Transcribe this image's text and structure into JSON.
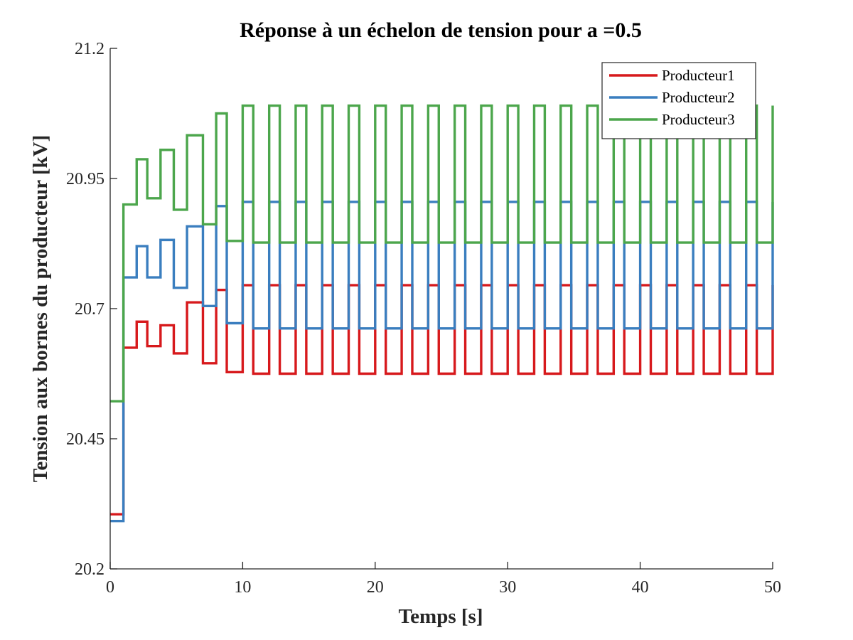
{
  "chart_data": {
    "type": "line",
    "title": "Réponse à un échelon de tension pour a =0.5",
    "xlabel": "Temps [s]",
    "ylabel": "Tension aux bornes du producteur [kV]",
    "xlim": [
      0,
      50
    ],
    "ylim": [
      20.2,
      21.2
    ],
    "x_ticks": [
      0,
      10,
      20,
      30,
      40,
      50
    ],
    "y_ticks": [
      20.2,
      20.45,
      20.7,
      20.95,
      21.2
    ],
    "x_tick_labels": [
      "0",
      "10",
      "20",
      "30",
      "40",
      "50"
    ],
    "y_tick_labels": [
      "20.2",
      "20.45",
      "20.7",
      "20.95",
      "21.2"
    ],
    "grid": false,
    "legend_position": "top-right",
    "series": [
      {
        "name": "Producteur1",
        "color": "#d7191c",
        "points": [
          [
            0,
            20.305
          ],
          [
            1,
            20.305
          ],
          [
            1,
            20.625
          ],
          [
            2,
            20.625
          ],
          [
            2,
            20.675
          ],
          [
            2.8,
            20.675
          ],
          [
            2.8,
            20.628
          ],
          [
            3.8,
            20.628
          ],
          [
            3.8,
            20.668
          ],
          [
            4.8,
            20.668
          ],
          [
            4.8,
            20.614
          ],
          [
            5.8,
            20.614
          ],
          [
            5.8,
            20.712
          ],
          [
            7,
            20.712
          ],
          [
            7,
            20.595
          ],
          [
            8,
            20.595
          ],
          [
            8,
            20.736
          ],
          [
            8.8,
            20.736
          ],
          [
            8.8,
            20.578
          ],
          [
            10,
            20.578
          ],
          [
            10,
            20.745
          ],
          [
            10.8,
            20.745
          ],
          [
            10.8,
            20.575
          ],
          [
            12,
            20.575
          ],
          [
            12,
            20.745
          ],
          [
            12.8,
            20.745
          ],
          [
            12.8,
            20.575
          ],
          [
            14,
            20.575
          ],
          [
            14,
            20.745
          ],
          [
            14.8,
            20.745
          ],
          [
            14.8,
            20.575
          ],
          [
            16,
            20.575
          ],
          [
            16,
            20.745
          ],
          [
            16.8,
            20.745
          ],
          [
            16.8,
            20.575
          ],
          [
            18,
            20.575
          ],
          [
            18,
            20.745
          ],
          [
            18.8,
            20.745
          ],
          [
            18.8,
            20.575
          ],
          [
            20,
            20.575
          ],
          [
            20,
            20.745
          ],
          [
            20.8,
            20.745
          ],
          [
            20.8,
            20.575
          ],
          [
            22,
            20.575
          ],
          [
            22,
            20.745
          ],
          [
            22.8,
            20.745
          ],
          [
            22.8,
            20.575
          ],
          [
            24,
            20.575
          ],
          [
            24,
            20.745
          ],
          [
            24.8,
            20.745
          ],
          [
            24.8,
            20.575
          ],
          [
            26,
            20.575
          ],
          [
            26,
            20.745
          ],
          [
            26.8,
            20.745
          ],
          [
            26.8,
            20.575
          ],
          [
            28,
            20.575
          ],
          [
            28,
            20.745
          ],
          [
            28.8,
            20.745
          ],
          [
            28.8,
            20.575
          ],
          [
            30,
            20.575
          ],
          [
            30,
            20.745
          ],
          [
            30.8,
            20.745
          ],
          [
            30.8,
            20.575
          ],
          [
            32,
            20.575
          ],
          [
            32,
            20.745
          ],
          [
            32.8,
            20.745
          ],
          [
            32.8,
            20.575
          ],
          [
            34,
            20.575
          ],
          [
            34,
            20.745
          ],
          [
            34.8,
            20.745
          ],
          [
            34.8,
            20.575
          ],
          [
            36,
            20.575
          ],
          [
            36,
            20.745
          ],
          [
            36.8,
            20.745
          ],
          [
            36.8,
            20.575
          ],
          [
            38,
            20.575
          ],
          [
            38,
            20.745
          ],
          [
            38.8,
            20.745
          ],
          [
            38.8,
            20.575
          ],
          [
            40,
            20.575
          ],
          [
            40,
            20.745
          ],
          [
            40.8,
            20.745
          ],
          [
            40.8,
            20.575
          ],
          [
            42,
            20.575
          ],
          [
            42,
            20.745
          ],
          [
            42.8,
            20.745
          ],
          [
            42.8,
            20.575
          ],
          [
            44,
            20.575
          ],
          [
            44,
            20.745
          ],
          [
            44.8,
            20.745
          ],
          [
            44.8,
            20.575
          ],
          [
            46,
            20.575
          ],
          [
            46,
            20.745
          ],
          [
            46.8,
            20.745
          ],
          [
            46.8,
            20.575
          ],
          [
            48,
            20.575
          ],
          [
            48,
            20.745
          ],
          [
            48.8,
            20.745
          ],
          [
            48.8,
            20.575
          ],
          [
            50,
            20.575
          ],
          [
            50,
            20.745
          ]
        ]
      },
      {
        "name": "Producteur2",
        "color": "#3a7ebf",
        "points": [
          [
            0,
            20.292
          ],
          [
            1,
            20.292
          ],
          [
            1,
            20.76
          ],
          [
            2,
            20.76
          ],
          [
            2,
            20.82
          ],
          [
            2.8,
            20.82
          ],
          [
            2.8,
            20.76
          ],
          [
            3.8,
            20.76
          ],
          [
            3.8,
            20.832
          ],
          [
            4.8,
            20.832
          ],
          [
            4.8,
            20.74
          ],
          [
            5.8,
            20.74
          ],
          [
            5.8,
            20.858
          ],
          [
            7,
            20.858
          ],
          [
            7,
            20.705
          ],
          [
            8,
            20.705
          ],
          [
            8,
            20.897
          ],
          [
            8.8,
            20.897
          ],
          [
            8.8,
            20.672
          ],
          [
            10,
            20.672
          ],
          [
            10,
            20.905
          ],
          [
            10.8,
            20.905
          ],
          [
            10.8,
            20.662
          ],
          [
            12,
            20.662
          ],
          [
            12,
            20.905
          ],
          [
            12.8,
            20.905
          ],
          [
            12.8,
            20.662
          ],
          [
            14,
            20.662
          ],
          [
            14,
            20.905
          ],
          [
            14.8,
            20.905
          ],
          [
            14.8,
            20.662
          ],
          [
            16,
            20.662
          ],
          [
            16,
            20.905
          ],
          [
            16.8,
            20.905
          ],
          [
            16.8,
            20.662
          ],
          [
            18,
            20.662
          ],
          [
            18,
            20.905
          ],
          [
            18.8,
            20.905
          ],
          [
            18.8,
            20.662
          ],
          [
            20,
            20.662
          ],
          [
            20,
            20.905
          ],
          [
            20.8,
            20.905
          ],
          [
            20.8,
            20.662
          ],
          [
            22,
            20.662
          ],
          [
            22,
            20.905
          ],
          [
            22.8,
            20.905
          ],
          [
            22.8,
            20.662
          ],
          [
            24,
            20.662
          ],
          [
            24,
            20.905
          ],
          [
            24.8,
            20.905
          ],
          [
            24.8,
            20.662
          ],
          [
            26,
            20.662
          ],
          [
            26,
            20.905
          ],
          [
            26.8,
            20.905
          ],
          [
            26.8,
            20.662
          ],
          [
            28,
            20.662
          ],
          [
            28,
            20.905
          ],
          [
            28.8,
            20.905
          ],
          [
            28.8,
            20.662
          ],
          [
            30,
            20.662
          ],
          [
            30,
            20.905
          ],
          [
            30.8,
            20.905
          ],
          [
            30.8,
            20.662
          ],
          [
            32,
            20.662
          ],
          [
            32,
            20.905
          ],
          [
            32.8,
            20.905
          ],
          [
            32.8,
            20.662
          ],
          [
            34,
            20.662
          ],
          [
            34,
            20.905
          ],
          [
            34.8,
            20.905
          ],
          [
            34.8,
            20.662
          ],
          [
            36,
            20.662
          ],
          [
            36,
            20.905
          ],
          [
            36.8,
            20.905
          ],
          [
            36.8,
            20.662
          ],
          [
            38,
            20.662
          ],
          [
            38,
            20.905
          ],
          [
            38.8,
            20.905
          ],
          [
            38.8,
            20.662
          ],
          [
            40,
            20.662
          ],
          [
            40,
            20.905
          ],
          [
            40.8,
            20.905
          ],
          [
            40.8,
            20.662
          ],
          [
            42,
            20.662
          ],
          [
            42,
            20.905
          ],
          [
            42.8,
            20.905
          ],
          [
            42.8,
            20.662
          ],
          [
            44,
            20.662
          ],
          [
            44,
            20.905
          ],
          [
            44.8,
            20.905
          ],
          [
            44.8,
            20.662
          ],
          [
            46,
            20.662
          ],
          [
            46,
            20.905
          ],
          [
            46.8,
            20.905
          ],
          [
            46.8,
            20.662
          ],
          [
            48,
            20.662
          ],
          [
            48,
            20.905
          ],
          [
            48.8,
            20.905
          ],
          [
            48.8,
            20.662
          ],
          [
            50,
            20.662
          ],
          [
            50,
            20.905
          ]
        ]
      },
      {
        "name": "Producteur3",
        "color": "#4ca64c",
        "points": [
          [
            0,
            20.522
          ],
          [
            1,
            20.522
          ],
          [
            1,
            20.9
          ],
          [
            2,
            20.9
          ],
          [
            2,
            20.987
          ],
          [
            2.8,
            20.987
          ],
          [
            2.8,
            20.912
          ],
          [
            3.8,
            20.912
          ],
          [
            3.8,
            21.005
          ],
          [
            4.8,
            21.005
          ],
          [
            4.8,
            20.89
          ],
          [
            5.8,
            20.89
          ],
          [
            5.8,
            21.033
          ],
          [
            7,
            21.033
          ],
          [
            7,
            20.862
          ],
          [
            8,
            20.862
          ],
          [
            8,
            21.075
          ],
          [
            8.8,
            21.075
          ],
          [
            8.8,
            20.83
          ],
          [
            10,
            20.83
          ],
          [
            10,
            21.09
          ],
          [
            10.8,
            21.09
          ],
          [
            10.8,
            20.827
          ],
          [
            12,
            20.827
          ],
          [
            12,
            21.09
          ],
          [
            12.8,
            21.09
          ],
          [
            12.8,
            20.827
          ],
          [
            14,
            20.827
          ],
          [
            14,
            21.09
          ],
          [
            14.8,
            21.09
          ],
          [
            14.8,
            20.827
          ],
          [
            16,
            20.827
          ],
          [
            16,
            21.09
          ],
          [
            16.8,
            21.09
          ],
          [
            16.8,
            20.827
          ],
          [
            18,
            20.827
          ],
          [
            18,
            21.09
          ],
          [
            18.8,
            21.09
          ],
          [
            18.8,
            20.827
          ],
          [
            20,
            20.827
          ],
          [
            20,
            21.09
          ],
          [
            20.8,
            21.09
          ],
          [
            20.8,
            20.827
          ],
          [
            22,
            20.827
          ],
          [
            22,
            21.09
          ],
          [
            22.8,
            21.09
          ],
          [
            22.8,
            20.827
          ],
          [
            24,
            20.827
          ],
          [
            24,
            21.09
          ],
          [
            24.8,
            21.09
          ],
          [
            24.8,
            20.827
          ],
          [
            26,
            20.827
          ],
          [
            26,
            21.09
          ],
          [
            26.8,
            21.09
          ],
          [
            26.8,
            20.827
          ],
          [
            28,
            20.827
          ],
          [
            28,
            21.09
          ],
          [
            28.8,
            21.09
          ],
          [
            28.8,
            20.827
          ],
          [
            30,
            20.827
          ],
          [
            30,
            21.09
          ],
          [
            30.8,
            21.09
          ],
          [
            30.8,
            20.827
          ],
          [
            32,
            20.827
          ],
          [
            32,
            21.09
          ],
          [
            32.8,
            21.09
          ],
          [
            32.8,
            20.827
          ],
          [
            34,
            20.827
          ],
          [
            34,
            21.09
          ],
          [
            34.8,
            21.09
          ],
          [
            34.8,
            20.827
          ],
          [
            36,
            20.827
          ],
          [
            36,
            21.09
          ],
          [
            36.8,
            21.09
          ],
          [
            36.8,
            20.827
          ],
          [
            38,
            20.827
          ],
          [
            38,
            21.09
          ],
          [
            38.8,
            21.09
          ],
          [
            38.8,
            20.827
          ],
          [
            40,
            20.827
          ],
          [
            40,
            21.09
          ],
          [
            40.8,
            21.09
          ],
          [
            40.8,
            20.827
          ],
          [
            42,
            20.827
          ],
          [
            42,
            21.09
          ],
          [
            42.8,
            21.09
          ],
          [
            42.8,
            20.827
          ],
          [
            44,
            20.827
          ],
          [
            44,
            21.09
          ],
          [
            44.8,
            21.09
          ],
          [
            44.8,
            20.827
          ],
          [
            46,
            20.827
          ],
          [
            46,
            21.09
          ],
          [
            46.8,
            21.09
          ],
          [
            46.8,
            20.827
          ],
          [
            48,
            20.827
          ],
          [
            48,
            21.09
          ],
          [
            48.8,
            21.09
          ],
          [
            48.8,
            20.827
          ],
          [
            50,
            20.827
          ],
          [
            50,
            21.09
          ]
        ]
      }
    ]
  }
}
